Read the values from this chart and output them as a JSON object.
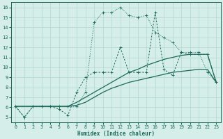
{
  "xlabel": "Humidex (Indice chaleur)",
  "bg_color": "#d5eeea",
  "grid_color": "#b0d8d2",
  "line_color": "#1a6b5a",
  "xlim": [
    -0.5,
    23.5
  ],
  "ylim": [
    4.5,
    16.5
  ],
  "xticks": [
    0,
    1,
    2,
    3,
    4,
    5,
    6,
    7,
    8,
    9,
    10,
    11,
    12,
    13,
    14,
    15,
    16,
    17,
    18,
    19,
    20,
    21,
    22,
    23
  ],
  "yticks": [
    5,
    6,
    7,
    8,
    9,
    10,
    11,
    12,
    13,
    14,
    15,
    16
  ],
  "series_dotted_x": [
    0,
    1,
    2,
    3,
    4,
    5,
    6,
    7,
    8,
    9,
    10,
    11,
    12,
    13,
    14,
    15,
    16,
    17,
    18,
    19,
    20,
    21,
    22,
    23
  ],
  "series_dotted_y": [
    6.1,
    5.0,
    6.1,
    6.1,
    6.1,
    6.1,
    6.1,
    6.1,
    7.5,
    14.5,
    15.5,
    15.5,
    16.0,
    15.2,
    15.0,
    15.2,
    13.5,
    13.0,
    12.5,
    11.5,
    11.5,
    11.5,
    9.5,
    8.5
  ],
  "series_dash_x": [
    0,
    1,
    2,
    3,
    4,
    5,
    6,
    7,
    8,
    9,
    10,
    11,
    12,
    13,
    14,
    15,
    16,
    17,
    18,
    19,
    20,
    21,
    22,
    23
  ],
  "series_dash_y": [
    6.1,
    5.0,
    6.1,
    6.1,
    6.1,
    5.8,
    5.2,
    7.5,
    9.0,
    9.5,
    9.5,
    9.5,
    12.0,
    9.5,
    9.5,
    9.5,
    15.5,
    9.8,
    9.2,
    11.5,
    11.3,
    11.3,
    11.3,
    8.5
  ],
  "series_line1_x": [
    0,
    1,
    2,
    3,
    4,
    5,
    6,
    7,
    8,
    9,
    10,
    11,
    12,
    13,
    14,
    15,
    16,
    17,
    18,
    19,
    20,
    21,
    22,
    23
  ],
  "series_line1_y": [
    6.1,
    6.1,
    6.1,
    6.1,
    6.1,
    6.1,
    6.1,
    6.5,
    7.0,
    7.5,
    8.0,
    8.5,
    9.0,
    9.5,
    9.8,
    10.2,
    10.5,
    10.8,
    11.0,
    11.2,
    11.3,
    11.3,
    11.3,
    8.5
  ],
  "series_line2_x": [
    0,
    1,
    2,
    3,
    4,
    5,
    6,
    7,
    8,
    9,
    10,
    11,
    12,
    13,
    14,
    15,
    16,
    17,
    18,
    19,
    20,
    21,
    22,
    23
  ],
  "series_line2_y": [
    6.1,
    6.1,
    6.1,
    6.1,
    6.1,
    6.1,
    6.1,
    6.2,
    6.5,
    7.0,
    7.5,
    7.9,
    8.2,
    8.5,
    8.7,
    8.9,
    9.1,
    9.3,
    9.5,
    9.6,
    9.7,
    9.8,
    9.8,
    8.5
  ]
}
